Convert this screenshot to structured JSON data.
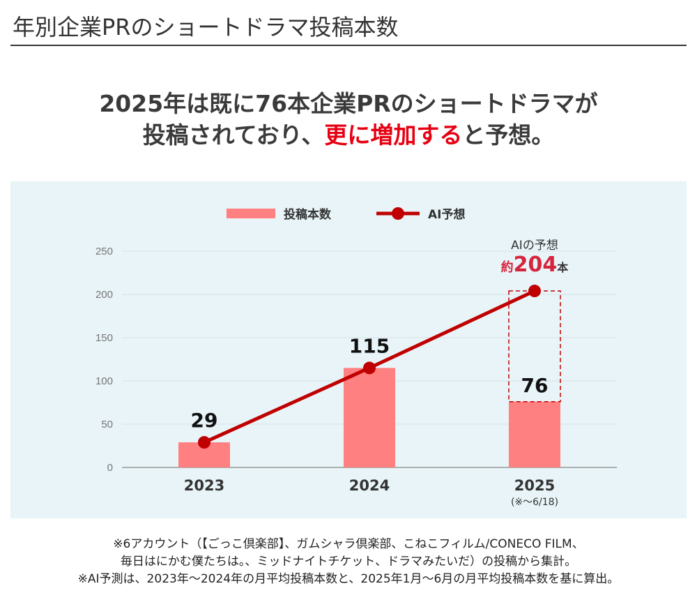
{
  "title": "年別企業PRのショートドラマ投稿本数",
  "headline": {
    "line1": "2025年は既に76本企業PRのショートドラマが",
    "line2_pre": "投稿されており、",
    "line2_highlight": "更に増加する",
    "line2_post": "と予想。"
  },
  "colors": {
    "bar": "#ff8080",
    "line": "#c00000",
    "highlight": "#e60012",
    "forecast_text": "#d6243c"
  },
  "chart_data": {
    "type": "bar",
    "categories": [
      "2023",
      "2024",
      "2025"
    ],
    "category_notes": [
      "",
      "",
      "(※〜6/18)"
    ],
    "series": [
      {
        "name": "投稿本数",
        "type": "bar",
        "values": [
          29,
          115,
          76
        ]
      },
      {
        "name": "AI予想",
        "type": "line",
        "values": [
          29,
          115,
          204
        ]
      }
    ],
    "data_labels": [
      "29",
      "115",
      "76"
    ],
    "forecast_annotation": {
      "label": "AIの予想",
      "prefix": "約",
      "value": "204",
      "suffix": "本"
    },
    "yticks": [
      0,
      50,
      100,
      150,
      200,
      250
    ],
    "ylim": [
      0,
      250
    ],
    "grid": true,
    "legend": "top"
  },
  "notes": [
    "※6アカウント（【ごっこ倶楽部】、ガムシャラ倶楽部、こねこフィルム/CONECO FILM、",
    "毎日はにかむ僕たちは。、ミッドナイトチケット、ドラマみたいだ）の投稿から集計。",
    "※AI予測は、2023年〜2024年の月平均投稿本数と、2025年1月〜6月の月平均投稿本数を基に算出。"
  ]
}
